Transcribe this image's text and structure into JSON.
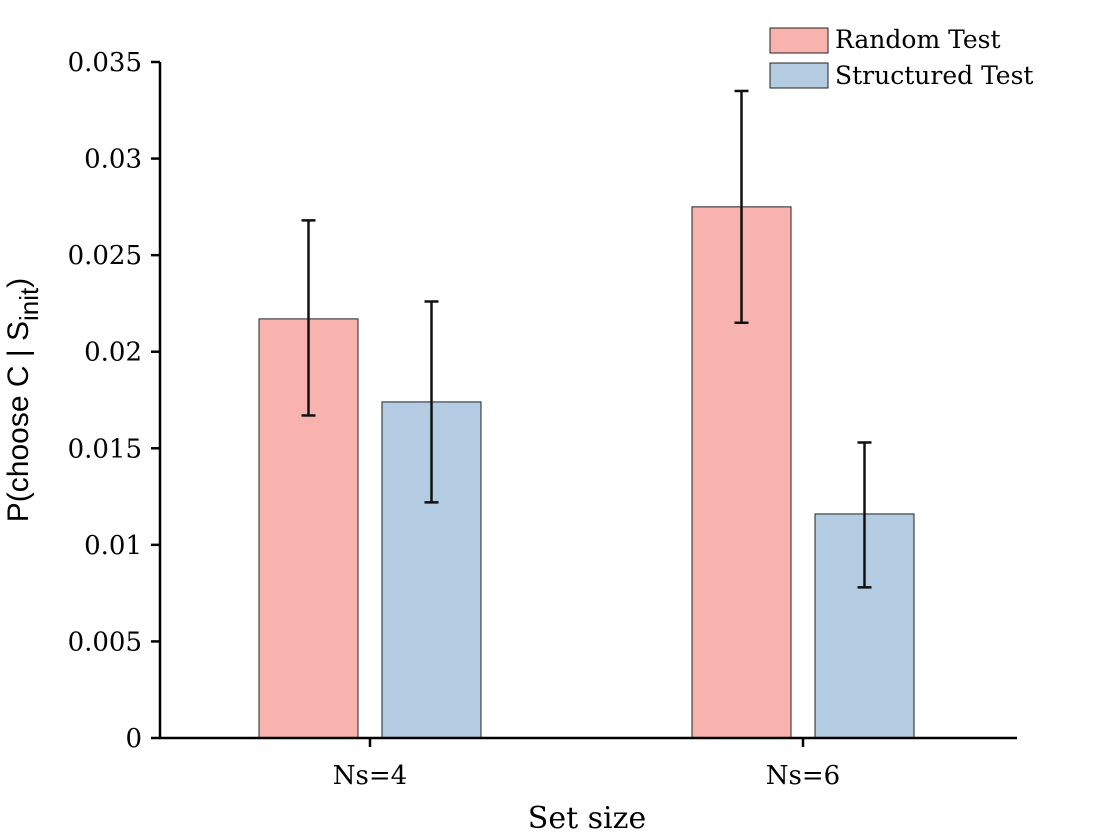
{
  "chart_data": {
    "type": "bar",
    "categories": [
      "Ns=4",
      "Ns=6"
    ],
    "series": [
      {
        "name": "Random Test",
        "color": "#f9b3ae",
        "values": [
          0.0217,
          0.0275
        ],
        "err_low": [
          0.0167,
          0.0215
        ],
        "err_high": [
          0.0268,
          0.0335
        ]
      },
      {
        "name": "Structured Test",
        "color": "#b3cce2",
        "values": [
          0.0174,
          0.0116
        ],
        "err_low": [
          0.0122,
          0.0078
        ],
        "err_high": [
          0.0226,
          0.0153
        ]
      }
    ],
    "xlabel": "Set size",
    "ylabel_main": "P(choose C | S",
    "ylabel_sub": "init",
    "ylabel_close": ")",
    "ylim": [
      0,
      0.035
    ],
    "yticks": [
      "0",
      "0.005",
      "0.01",
      "0.015",
      "0.02",
      "0.025",
      "0.03",
      "0.035"
    ],
    "grid": false,
    "legend_position": "top-right"
  }
}
